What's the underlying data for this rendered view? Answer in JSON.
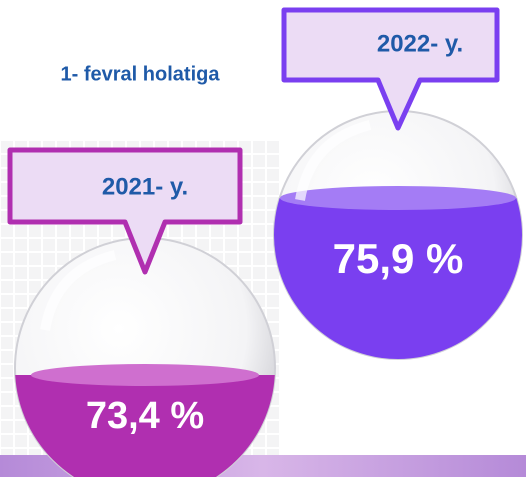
{
  "header": {
    "title": "1- fevral holatiga"
  },
  "items": [
    {
      "year": "2022- y.",
      "value": "75,9 %"
    },
    {
      "year": "2021- y.",
      "value": "73,4 %"
    }
  ]
}
